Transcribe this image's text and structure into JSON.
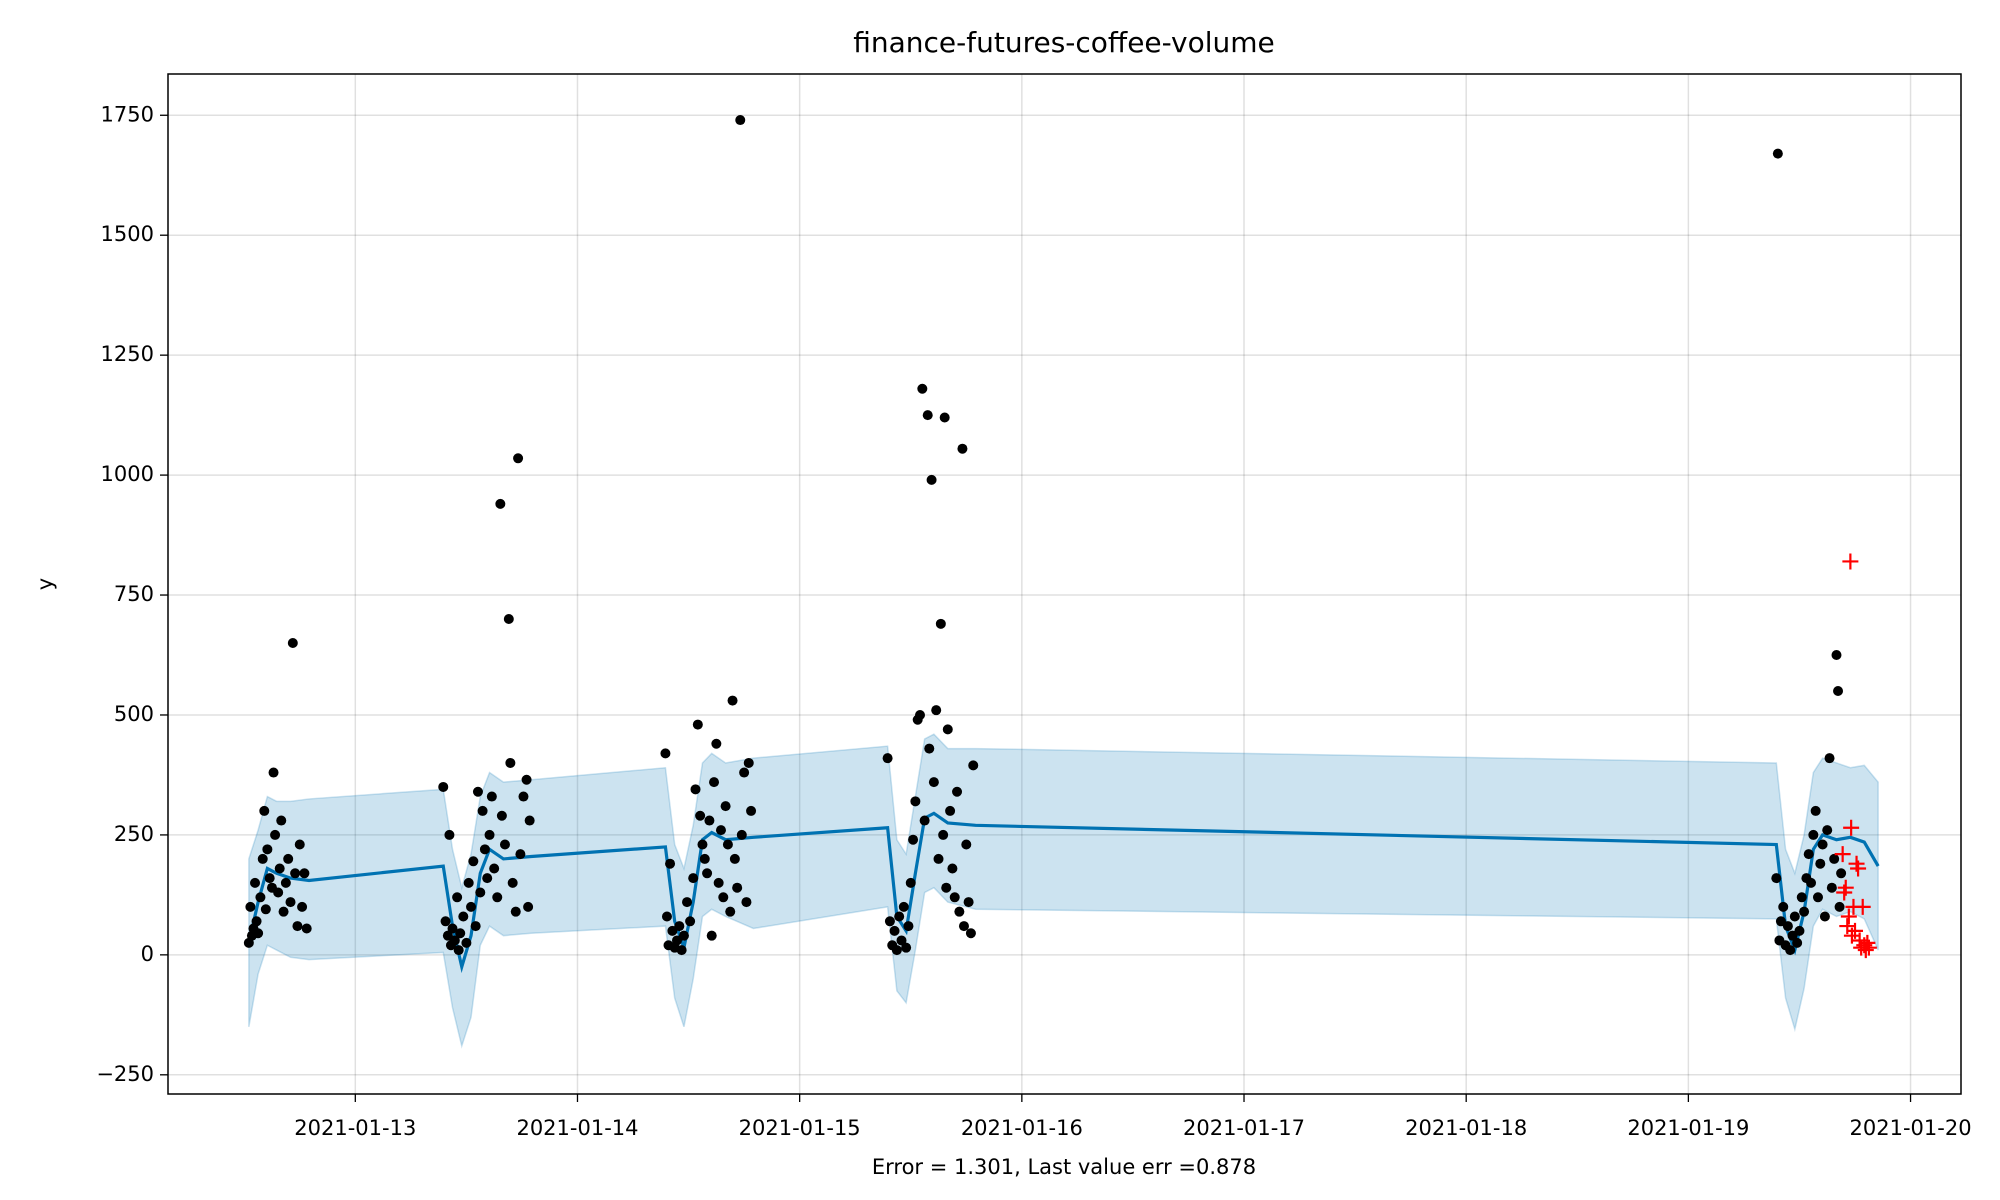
{
  "chart_data": {
    "type": "forecast",
    "title": "finance-futures-coffee-volume",
    "xlabel": "Error = 1.301, Last value err =0.878",
    "ylabel": "y",
    "xlim": [
      "2021-01-12 03:46",
      "2021-01-20 05:27"
    ],
    "xticks": [
      "2021-01-13",
      "2021-01-14",
      "2021-01-15",
      "2021-01-16",
      "2021-01-17",
      "2021-01-18",
      "2021-01-19",
      "2021-01-20"
    ],
    "ylim": [
      -290,
      1836
    ],
    "yticks": [
      -250,
      0,
      250,
      500,
      750,
      1000,
      1250,
      1500,
      1750
    ],
    "grid": true,
    "series": [
      {
        "type": "band_line",
        "color": "#0072B2",
        "x": [
          "2021-01-12 12:30",
          "2021-01-12 13:30",
          "2021-01-12 14:30",
          "2021-01-12 15:30",
          "2021-01-12 17:00",
          "2021-01-12 19:00",
          "2021-01-13 09:30",
          "2021-01-13 10:30",
          "2021-01-13 11:30",
          "2021-01-13 12:30",
          "2021-01-13 13:30",
          "2021-01-13 14:30",
          "2021-01-13 16:00",
          "2021-01-13 19:00",
          "2021-01-14 09:30",
          "2021-01-14 10:30",
          "2021-01-14 11:30",
          "2021-01-14 12:30",
          "2021-01-14 13:30",
          "2021-01-14 14:30",
          "2021-01-14 16:00",
          "2021-01-14 19:00",
          "2021-01-15 09:30",
          "2021-01-15 10:30",
          "2021-01-15 11:30",
          "2021-01-15 12:30",
          "2021-01-15 13:30",
          "2021-01-15 14:30",
          "2021-01-15 16:00",
          "2021-01-15 19:00",
          "2021-01-19 09:30",
          "2021-01-19 10:30",
          "2021-01-19 11:30",
          "2021-01-19 12:30",
          "2021-01-19 13:30",
          "2021-01-19 14:30",
          "2021-01-19 16:00",
          "2021-01-19 17:30",
          "2021-01-19 19:00",
          "2021-01-19 20:30"
        ],
        "values": [
          25,
          110,
          180,
          170,
          160,
          155,
          185,
          60,
          -25,
          40,
          170,
          220,
          200,
          205,
          225,
          70,
          15,
          110,
          240,
          255,
          240,
          245,
          265,
          80,
          50,
          170,
          285,
          295,
          275,
          270,
          230,
          60,
          10,
          90,
          220,
          250,
          240,
          245,
          235,
          185
        ],
        "lower": [
          -150,
          -40,
          20,
          10,
          -5,
          -10,
          5,
          -110,
          -190,
          -130,
          20,
          60,
          40,
          45,
          60,
          -90,
          -150,
          -50,
          80,
          95,
          80,
          55,
          100,
          -75,
          -100,
          10,
          130,
          140,
          110,
          95,
          75,
          -90,
          -155,
          -70,
          60,
          95,
          80,
          90,
          75,
          10
        ],
        "upper": [
          200,
          260,
          330,
          320,
          320,
          325,
          345,
          220,
          140,
          210,
          330,
          380,
          360,
          365,
          390,
          230,
          180,
          270,
          400,
          420,
          400,
          410,
          435,
          240,
          210,
          330,
          450,
          460,
          430,
          430,
          400,
          220,
          170,
          250,
          380,
          410,
          400,
          390,
          395,
          360
        ]
      },
      {
        "type": "scatter",
        "color": "#000000",
        "x": [
          "2021-01-12 12:30",
          "2021-01-12 12:40",
          "2021-01-12 12:50",
          "2021-01-12 13:00",
          "2021-01-12 13:10",
          "2021-01-12 13:20",
          "2021-01-12 13:30",
          "2021-01-12 13:45",
          "2021-01-12 14:00",
          "2021-01-12 14:10",
          "2021-01-12 14:20",
          "2021-01-12 14:30",
          "2021-01-12 14:45",
          "2021-01-12 15:00",
          "2021-01-12 15:10",
          "2021-01-12 15:20",
          "2021-01-12 15:40",
          "2021-01-12 15:50",
          "2021-01-12 16:00",
          "2021-01-12 16:15",
          "2021-01-12 16:30",
          "2021-01-12 16:45",
          "2021-01-12 17:00",
          "2021-01-12 17:15",
          "2021-01-12 17:30",
          "2021-01-12 17:45",
          "2021-01-12 18:00",
          "2021-01-12 18:15",
          "2021-01-12 18:30",
          "2021-01-12 18:45",
          "2021-01-13 09:30",
          "2021-01-13 09:45",
          "2021-01-13 10:00",
          "2021-01-13 10:10",
          "2021-01-13 10:20",
          "2021-01-13 10:30",
          "2021-01-13 10:45",
          "2021-01-13 11:00",
          "2021-01-13 11:10",
          "2021-01-13 11:20",
          "2021-01-13 11:40",
          "2021-01-13 12:00",
          "2021-01-13 12:15",
          "2021-01-13 12:30",
          "2021-01-13 12:45",
          "2021-01-13 13:00",
          "2021-01-13 13:15",
          "2021-01-13 13:30",
          "2021-01-13 13:45",
          "2021-01-13 14:00",
          "2021-01-13 14:15",
          "2021-01-13 14:30",
          "2021-01-13 14:45",
          "2021-01-13 15:00",
          "2021-01-13 15:20",
          "2021-01-13 15:40",
          "2021-01-13 15:50",
          "2021-01-13 16:10",
          "2021-01-13 16:35",
          "2021-01-13 16:45",
          "2021-01-13 17:00",
          "2021-01-13 17:20",
          "2021-01-13 17:35",
          "2021-01-13 17:50",
          "2021-01-13 18:10",
          "2021-01-13 18:30",
          "2021-01-13 18:40",
          "2021-01-13 18:50",
          "2021-01-14 09:30",
          "2021-01-14 09:40",
          "2021-01-14 09:50",
          "2021-01-14 10:00",
          "2021-01-14 10:15",
          "2021-01-14 10:30",
          "2021-01-14 10:45",
          "2021-01-14 11:00",
          "2021-01-14 11:15",
          "2021-01-14 11:30",
          "2021-01-14 11:50",
          "2021-01-14 12:10",
          "2021-01-14 12:30",
          "2021-01-14 12:45",
          "2021-01-14 13:00",
          "2021-01-14 13:15",
          "2021-01-14 13:30",
          "2021-01-14 13:45",
          "2021-01-14 14:00",
          "2021-01-14 14:15",
          "2021-01-14 14:30",
          "2021-01-14 14:45",
          "2021-01-14 15:00",
          "2021-01-14 15:15",
          "2021-01-14 15:30",
          "2021-01-14 15:45",
          "2021-01-14 16:00",
          "2021-01-14 16:15",
          "2021-01-14 16:30",
          "2021-01-14 16:45",
          "2021-01-14 17:00",
          "2021-01-14 17:15",
          "2021-01-14 17:35",
          "2021-01-14 17:45",
          "2021-01-14 18:00",
          "2021-01-14 18:15",
          "2021-01-14 18:30",
          "2021-01-14 18:45",
          "2021-01-15 09:30",
          "2021-01-15 09:45",
          "2021-01-15 10:00",
          "2021-01-15 10:15",
          "2021-01-15 10:30",
          "2021-01-15 10:45",
          "2021-01-15 11:00",
          "2021-01-15 11:15",
          "2021-01-15 11:30",
          "2021-01-15 11:45",
          "2021-01-15 12:00",
          "2021-01-15 12:15",
          "2021-01-15 12:30",
          "2021-01-15 12:45",
          "2021-01-15 13:00",
          "2021-01-15 13:15",
          "2021-01-15 13:30",
          "2021-01-15 13:50",
          "2021-01-15 14:00",
          "2021-01-15 14:15",
          "2021-01-15 14:30",
          "2021-01-15 14:45",
          "2021-01-15 15:00",
          "2021-01-15 15:15",
          "2021-01-15 15:30",
          "2021-01-15 15:40",
          "2021-01-15 15:50",
          "2021-01-15 16:00",
          "2021-01-15 16:15",
          "2021-01-15 16:30",
          "2021-01-15 16:45",
          "2021-01-15 17:00",
          "2021-01-15 17:15",
          "2021-01-15 17:35",
          "2021-01-15 17:45",
          "2021-01-15 18:00",
          "2021-01-15 18:15",
          "2021-01-15 18:30",
          "2021-01-15 18:45",
          "2021-01-19 09:30",
          "2021-01-19 09:40",
          "2021-01-19 09:50",
          "2021-01-19 10:00",
          "2021-01-19 10:15",
          "2021-01-19 10:30",
          "2021-01-19 10:45",
          "2021-01-19 11:00",
          "2021-01-19 11:15",
          "2021-01-19 11:30",
          "2021-01-19 11:45",
          "2021-01-19 12:00",
          "2021-01-19 12:15",
          "2021-01-19 12:30",
          "2021-01-19 12:45",
          "2021-01-19 13:00",
          "2021-01-19 13:15",
          "2021-01-19 13:30",
          "2021-01-19 13:45",
          "2021-01-19 14:00",
          "2021-01-19 14:15",
          "2021-01-19 14:30",
          "2021-01-19 14:45",
          "2021-01-19 15:00",
          "2021-01-19 15:15",
          "2021-01-19 15:30",
          "2021-01-19 15:45",
          "2021-01-19 16:00",
          "2021-01-19 16:10",
          "2021-01-19 16:20",
          "2021-01-19 16:30"
        ],
        "values": [
          25,
          100,
          40,
          55,
          150,
          70,
          45,
          120,
          200,
          300,
          95,
          220,
          160,
          140,
          380,
          250,
          130,
          180,
          280,
          90,
          150,
          200,
          110,
          650,
          170,
          60,
          230,
          100,
          170,
          55,
          350,
          70,
          40,
          250,
          20,
          55,
          30,
          120,
          10,
          45,
          80,
          25,
          150,
          100,
          195,
          60,
          340,
          130,
          300,
          220,
          160,
          250,
          330,
          180,
          120,
          940,
          290,
          230,
          700,
          400,
          150,
          90,
          1035,
          210,
          330,
          365,
          100,
          280,
          420,
          80,
          20,
          190,
          50,
          15,
          30,
          60,
          10,
          40,
          110,
          70,
          160,
          345,
          480,
          290,
          230,
          200,
          170,
          280,
          40,
          360,
          440,
          150,
          260,
          120,
          310,
          230,
          90,
          530,
          200,
          140,
          1740,
          250,
          380,
          110,
          400,
          300,
          410,
          70,
          20,
          50,
          10,
          80,
          30,
          100,
          15,
          60,
          150,
          240,
          320,
          490,
          500,
          1180,
          280,
          1125,
          430,
          990,
          360,
          510,
          200,
          690,
          250,
          1120,
          140,
          470,
          300,
          180,
          120,
          340,
          90,
          1055,
          60,
          230,
          110,
          45,
          395,
          160,
          1670,
          30,
          70,
          100,
          20,
          60,
          10,
          40,
          80,
          25,
          50,
          120,
          90,
          160,
          210,
          150,
          250,
          300,
          120,
          190,
          230,
          80,
          260,
          410,
          140,
          200,
          625,
          550,
          100,
          170
        ]
      },
      {
        "type": "plus",
        "color": "#ff0000",
        "x": [
          "2021-01-19 16:40",
          "2021-01-19 16:50",
          "2021-01-19 17:00",
          "2021-01-19 17:10",
          "2021-01-19 17:20",
          "2021-01-19 17:30",
          "2021-01-19 17:35",
          "2021-01-19 17:40",
          "2021-01-19 17:50",
          "2021-01-19 18:00",
          "2021-01-19 18:10",
          "2021-01-19 18:20",
          "2021-01-19 18:30",
          "2021-01-19 18:40",
          "2021-01-19 18:50",
          "2021-01-19 19:00",
          "2021-01-19 19:10",
          "2021-01-19 19:20",
          "2021-01-19 19:30"
        ],
        "values": [
          210,
          130,
          140,
          60,
          80,
          820,
          265,
          40,
          100,
          50,
          190,
          180,
          30,
          15,
          100,
          20,
          10,
          25,
          15
        ]
      }
    ]
  }
}
